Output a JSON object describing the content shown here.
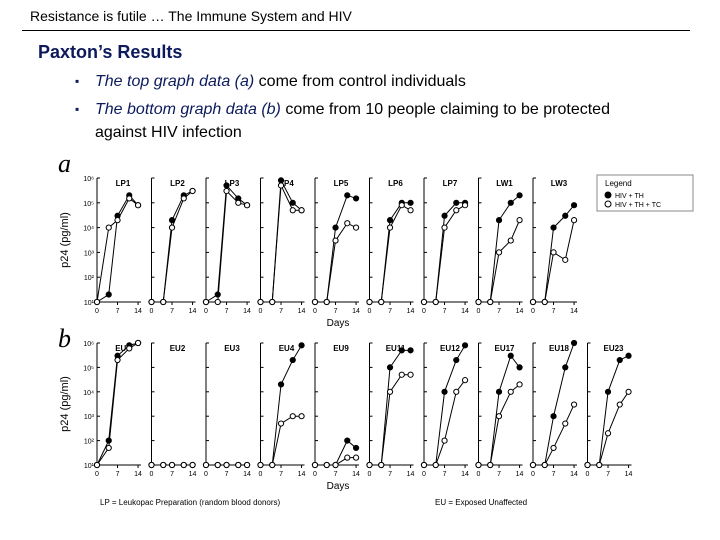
{
  "header": {
    "title": "Resistance is futile … The Immune System and HIV"
  },
  "slide_title": "Paxton’s Results",
  "bullets": [
    {
      "emphasis": "The top graph data (a)",
      "text": " come from control individuals"
    },
    {
      "emphasis": "The bottom graph data (b)",
      "text": " come from 10 people claiming to be protected against HIV infection"
    }
  ],
  "figure": {
    "type": "line",
    "y_label": "p24 (pg/ml)",
    "x_label": "Days",
    "log_y": true,
    "ylim": [
      10,
      1000000
    ],
    "yticks": [
      {
        "value": 10,
        "label": "10¹"
      },
      {
        "value": 100,
        "label": "10²"
      },
      {
        "value": 1000,
        "label": "10³"
      },
      {
        "value": 10000,
        "label": "10⁴"
      },
      {
        "value": 100000,
        "label": "10⁵"
      },
      {
        "value": 1000000,
        "label": "10⁶"
      }
    ],
    "xlim": [
      0,
      15
    ],
    "xticks": [
      0,
      7,
      14
    ],
    "x": [
      0,
      4,
      7,
      11,
      14
    ],
    "legend": {
      "title": "Legend",
      "entries": [
        {
          "name": "HIV + TH",
          "color": "#000000"
        },
        {
          "name": "HIV + TH + TC",
          "color": "#ffffff"
        }
      ]
    },
    "rows": [
      {
        "label": "a",
        "panels": [
          {
            "name": "LP1",
            "series": [
              [
                10,
                20,
                30000,
                200000,
                80000
              ],
              [
                10,
                10000,
                20000,
                150000,
                80000
              ]
            ]
          },
          {
            "name": "LP2",
            "series": [
              [
                10,
                10,
                20000,
                200000,
                300000
              ],
              [
                10,
                10,
                10000,
                150000,
                300000
              ]
            ]
          },
          {
            "name": "LP3",
            "series": [
              [
                10,
                20,
                500000,
                150000,
                80000
              ],
              [
                10,
                10,
                300000,
                100000,
                80000
              ]
            ]
          },
          {
            "name": "LP4",
            "series": [
              [
                10,
                10,
                800000,
                100000,
                50000
              ],
              [
                10,
                10,
                500000,
                50000,
                50000
              ]
            ]
          },
          {
            "name": "LP5",
            "series": [
              [
                10,
                10,
                10000,
                200000,
                150000
              ],
              [
                10,
                10,
                3000,
                15000,
                10000
              ]
            ]
          },
          {
            "name": "LP6",
            "series": [
              [
                10,
                10,
                20000,
                100000,
                100000
              ],
              [
                10,
                10,
                10000,
                80000,
                50000
              ]
            ]
          },
          {
            "name": "LP7",
            "series": [
              [
                10,
                10,
                30000,
                100000,
                100000
              ],
              [
                10,
                10,
                10000,
                50000,
                80000
              ]
            ]
          },
          {
            "name": "LW1",
            "series": [
              [
                10,
                10,
                20000,
                100000,
                200000
              ],
              [
                10,
                10,
                1000,
                3000,
                20000
              ]
            ]
          },
          {
            "name": "LW3",
            "series": [
              [
                10,
                10,
                10000,
                30000,
                80000
              ],
              [
                10,
                10,
                1000,
                500,
                20000
              ]
            ]
          }
        ]
      },
      {
        "label": "b",
        "panels": [
          {
            "name": "EU1",
            "series": [
              [
                10,
                100,
                300000,
                800000,
                1000000
              ],
              [
                10,
                50,
                200000,
                600000,
                1000000
              ]
            ]
          },
          {
            "name": "EU2",
            "series": [
              [
                10,
                10,
                10,
                10,
                10
              ],
              [
                10,
                10,
                10,
                10,
                10
              ]
            ]
          },
          {
            "name": "EU3",
            "series": [
              [
                10,
                10,
                10,
                10,
                10
              ],
              [
                10,
                10,
                10,
                10,
                10
              ]
            ]
          },
          {
            "name": "EU4",
            "series": [
              [
                10,
                10,
                20000,
                200000,
                800000
              ],
              [
                10,
                10,
                500,
                1000,
                1000
              ]
            ]
          },
          {
            "name": "EU9",
            "series": [
              [
                10,
                10,
                10,
                100,
                50
              ],
              [
                10,
                10,
                10,
                20,
                20
              ]
            ]
          },
          {
            "name": "EU11",
            "series": [
              [
                10,
                10,
                100000,
                500000,
                500000
              ],
              [
                10,
                10,
                10000,
                50000,
                50000
              ]
            ]
          },
          {
            "name": "EU12",
            "series": [
              [
                10,
                10,
                10000,
                200000,
                800000
              ],
              [
                10,
                10,
                100,
                10000,
                30000
              ]
            ]
          },
          {
            "name": "EU17",
            "series": [
              [
                10,
                10,
                10000,
                300000,
                100000
              ],
              [
                10,
                10,
                1000,
                10000,
                20000
              ]
            ]
          },
          {
            "name": "EU18",
            "series": [
              [
                10,
                10,
                1000,
                100000,
                1000000
              ],
              [
                10,
                10,
                50,
                500,
                3000
              ]
            ]
          },
          {
            "name": "EU23",
            "series": [
              [
                10,
                10,
                10000,
                200000,
                300000
              ],
              [
                10,
                10,
                200,
                3000,
                10000
              ]
            ]
          }
        ]
      }
    ]
  },
  "footnotes": [
    "LP = Leukopac Preparation (random blood donors)",
    "EU = Exposed Unaffected"
  ]
}
